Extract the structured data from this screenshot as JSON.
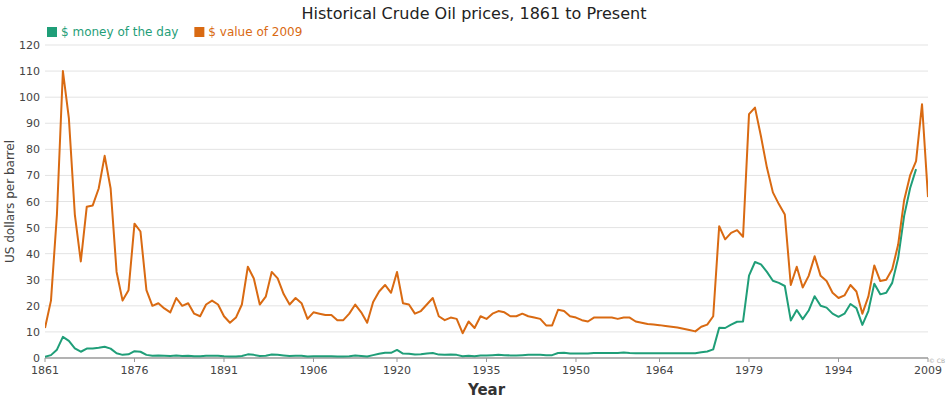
{
  "chart_data": {
    "type": "line",
    "title": "Historical Crude Oil prices, 1861 to Present",
    "x_label": "Year",
    "y_label": "US dollars per barrel",
    "annotations": [
      "© CB"
    ],
    "x": [
      1861,
      1862,
      1863,
      1864,
      1865,
      1866,
      1867,
      1868,
      1869,
      1870,
      1871,
      1872,
      1873,
      1874,
      1875,
      1876,
      1877,
      1878,
      1879,
      1880,
      1881,
      1882,
      1883,
      1884,
      1885,
      1886,
      1887,
      1888,
      1889,
      1890,
      1891,
      1892,
      1893,
      1894,
      1895,
      1896,
      1897,
      1898,
      1899,
      1900,
      1901,
      1902,
      1903,
      1904,
      1905,
      1906,
      1907,
      1908,
      1909,
      1910,
      1911,
      1912,
      1913,
      1914,
      1915,
      1916,
      1917,
      1918,
      1919,
      1920,
      1921,
      1922,
      1923,
      1924,
      1925,
      1926,
      1927,
      1928,
      1929,
      1930,
      1931,
      1932,
      1933,
      1934,
      1935,
      1936,
      1937,
      1938,
      1939,
      1940,
      1941,
      1942,
      1943,
      1944,
      1945,
      1946,
      1947,
      1948,
      1949,
      1950,
      1951,
      1952,
      1953,
      1954,
      1955,
      1956,
      1957,
      1958,
      1959,
      1960,
      1961,
      1962,
      1963,
      1964,
      1965,
      1966,
      1967,
      1968,
      1969,
      1970,
      1971,
      1972,
      1973,
      1974,
      1975,
      1976,
      1977,
      1978,
      1979,
      1980,
      1981,
      1982,
      1983,
      1984,
      1985,
      1986,
      1987,
      1988,
      1989,
      1990,
      1991,
      1992,
      1993,
      1994,
      1995,
      1996,
      1997,
      1998,
      1999,
      2000,
      2001,
      2002,
      2003,
      2004,
      2005,
      2006,
      2007,
      2008,
      2009
    ],
    "series": [
      {
        "name": "$ money of the day",
        "color": "#1f9e78",
        "values": [
          0.5,
          1.1,
          3.2,
          8.1,
          6.6,
          3.7,
          2.4,
          3.6,
          3.6,
          3.9,
          4.3,
          3.6,
          1.8,
          1.2,
          1.4,
          2.6,
          2.4,
          1.2,
          0.9,
          1.0,
          0.9,
          0.8,
          1.0,
          0.8,
          0.9,
          0.7,
          0.7,
          0.9,
          0.9,
          0.9,
          0.7,
          0.6,
          0.6,
          0.8,
          1.4,
          1.2,
          0.8,
          0.9,
          1.3,
          1.2,
          1.0,
          0.8,
          0.9,
          0.9,
          0.6,
          0.7,
          0.7,
          0.7,
          0.7,
          0.6,
          0.6,
          0.7,
          1.0,
          0.8,
          0.6,
          1.1,
          1.6,
          2.0,
          2.0,
          3.1,
          1.7,
          1.6,
          1.3,
          1.4,
          1.7,
          1.9,
          1.3,
          1.2,
          1.3,
          1.2,
          0.7,
          0.9,
          0.7,
          1.0,
          1.0,
          1.1,
          1.2,
          1.1,
          1.0,
          1.0,
          1.1,
          1.2,
          1.2,
          1.2,
          1.1,
          1.1,
          1.9,
          2.0,
          1.7,
          1.7,
          1.7,
          1.7,
          1.9,
          1.9,
          1.9,
          1.9,
          1.9,
          2.1,
          1.9,
          1.8,
          1.8,
          1.8,
          1.8,
          1.8,
          1.8,
          1.8,
          1.8,
          1.8,
          1.8,
          1.8,
          2.2,
          2.5,
          3.3,
          11.6,
          11.5,
          12.8,
          13.9,
          14.0,
          31.6,
          36.8,
          35.9,
          33.0,
          29.6,
          28.8,
          27.6,
          14.4,
          18.4,
          14.9,
          18.2,
          23.7,
          20.0,
          19.3,
          17.0,
          15.8,
          17.0,
          20.7,
          19.1,
          12.7,
          18.0,
          28.5,
          24.4,
          25.0,
          28.8,
          38.3,
          54.5,
          65.1,
          72.4,
          null,
          null
        ]
      },
      {
        "name": "$ value of 2009",
        "color": "#d96a12",
        "values": [
          11.5,
          22,
          55,
          110,
          92,
          55,
          37,
          58,
          58.5,
          65,
          77.5,
          65,
          33,
          22,
          26,
          51.5,
          48.5,
          26,
          20,
          21,
          19,
          17.5,
          23,
          20,
          21,
          17,
          16,
          20.5,
          22,
          20.5,
          16,
          13.5,
          15.5,
          20.5,
          35,
          30.5,
          20.5,
          23.5,
          33,
          30.5,
          24.5,
          20.5,
          23,
          21,
          15,
          17.5,
          17,
          16.5,
          16.5,
          14.5,
          14.5,
          17,
          20.5,
          17.5,
          13.5,
          21.5,
          25.5,
          28,
          25,
          33,
          21,
          20.5,
          17,
          18,
          20.5,
          23,
          16,
          14.5,
          15.5,
          15,
          9.5,
          14,
          11.5,
          16,
          15,
          17,
          18,
          17.5,
          16,
          16,
          17,
          16,
          15.5,
          15,
          12.5,
          12.5,
          18.5,
          18,
          16,
          15.5,
          14.5,
          14,
          15.5,
          15.5,
          15.5,
          15.5,
          15,
          15.5,
          15.5,
          14,
          13.5,
          13,
          12.8,
          12.6,
          12.3,
          12,
          11.7,
          11.2,
          10.7,
          10.2,
          12,
          12.8,
          16,
          50.5,
          45.5,
          48,
          49,
          46.5,
          93.5,
          96,
          85,
          73,
          63.5,
          59,
          55,
          28,
          35,
          27,
          31.5,
          39,
          31.5,
          29.5,
          25,
          23,
          24,
          28,
          25.5,
          17,
          23.5,
          35.5,
          29.5,
          30,
          34,
          43.5,
          60.5,
          70,
          75.5,
          97.3,
          61.7
        ]
      }
    ],
    "xlim": [
      1861,
      2009
    ],
    "xticks": [
      1861,
      1876,
      1891,
      1906,
      1920,
      1935,
      1950,
      1964,
      1979,
      1994,
      2009
    ],
    "ylim": [
      0,
      120
    ],
    "yticks": [
      0,
      10,
      20,
      30,
      40,
      50,
      60,
      70,
      80,
      90,
      100,
      110,
      120
    ],
    "grid": true,
    "legend": "top-left"
  }
}
